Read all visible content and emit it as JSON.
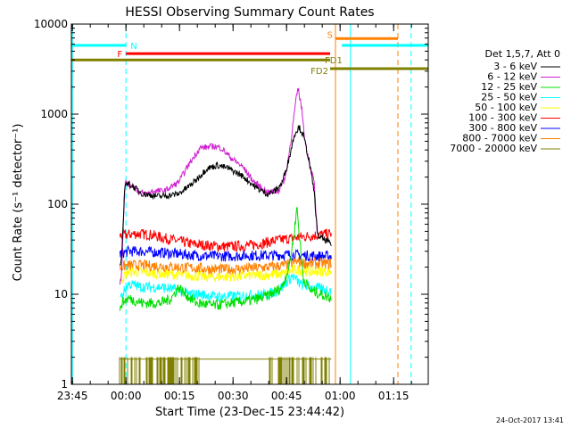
{
  "chart_data": {
    "type": "line",
    "title": "HESSI Observing Summary Count Rates",
    "xlabel": "Start Time (23-Dec-15 23:44:42)",
    "ylabel": "Count Rate (s⁻¹ detector⁻¹)",
    "y_scale": "log",
    "ylim": [
      1,
      10000
    ],
    "xlim_minutes_after_start": [
      0,
      100
    ],
    "x_ticks": [
      {
        "label": "23:45",
        "t": 0.3
      },
      {
        "label": "00:00",
        "t": 15.3
      },
      {
        "label": "00:15",
        "t": 30.3
      },
      {
        "label": "00:30",
        "t": 45.3
      },
      {
        "label": "00:45",
        "t": 60.3
      },
      {
        "label": "01:00",
        "t": 75.3
      },
      {
        "label": "01:15",
        "t": 90.3
      }
    ],
    "y_ticks": [
      {
        "label": "1",
        "v": 1
      },
      {
        "label": "10",
        "v": 10
      },
      {
        "label": "100",
        "v": 100
      },
      {
        "label": "1000",
        "v": 1000
      },
      {
        "label": "10000",
        "v": 10000
      }
    ],
    "legend_title": "Det 1,5,7, Att 0",
    "legend_position": "right",
    "series": [
      {
        "name": "3 - 6 keV",
        "color": "#000000",
        "points": [
          [
            13.6,
            20
          ],
          [
            14,
            22
          ],
          [
            15,
            170
          ],
          [
            17,
            160
          ],
          [
            20,
            130
          ],
          [
            25,
            122
          ],
          [
            30,
            130
          ],
          [
            34,
            170
          ],
          [
            38,
            250
          ],
          [
            41,
            270
          ],
          [
            44,
            250
          ],
          [
            48,
            205
          ],
          [
            52,
            150
          ],
          [
            55,
            130
          ],
          [
            57,
            140
          ],
          [
            59,
            170
          ],
          [
            61,
            320
          ],
          [
            62.5,
            600
          ],
          [
            63.8,
            720
          ],
          [
            65,
            580
          ],
          [
            66.5,
            320
          ],
          [
            68,
            140
          ],
          [
            69,
            45
          ],
          [
            71,
            40
          ],
          [
            72,
            38
          ],
          [
            73,
            35
          ]
        ]
      },
      {
        "name": "6 - 12 keV",
        "color": "#d020d0",
        "points": [
          [
            13.6,
            13
          ],
          [
            14,
            16
          ],
          [
            15,
            170
          ],
          [
            17,
            165
          ],
          [
            19,
            135
          ],
          [
            21,
            130
          ],
          [
            23,
            140
          ],
          [
            26,
            140
          ],
          [
            30,
            175
          ],
          [
            33,
            280
          ],
          [
            36,
            420
          ],
          [
            38,
            430
          ],
          [
            40,
            440
          ],
          [
            42,
            420
          ],
          [
            45,
            320
          ],
          [
            48,
            260
          ],
          [
            51,
            180
          ],
          [
            53,
            155
          ],
          [
            55,
            135
          ],
          [
            58,
            140
          ],
          [
            60,
            200
          ],
          [
            61.5,
            500
          ],
          [
            62.8,
            1300
          ],
          [
            63.5,
            1950
          ],
          [
            64.5,
            1200
          ],
          [
            65.5,
            500
          ],
          [
            67,
            250
          ],
          [
            68,
            180
          ],
          [
            69,
            40
          ]
        ]
      },
      {
        "name": "12 - 25 keV",
        "color": "#00e000",
        "points": [
          [
            13.6,
            6
          ],
          [
            14,
            8
          ],
          [
            16,
            9
          ],
          [
            20,
            8
          ],
          [
            25,
            8
          ],
          [
            28,
            9
          ],
          [
            30,
            12
          ],
          [
            32,
            10
          ],
          [
            35,
            8
          ],
          [
            40,
            7.5
          ],
          [
            45,
            8
          ],
          [
            50,
            8.5
          ],
          [
            53,
            9
          ],
          [
            56,
            10
          ],
          [
            59,
            12
          ],
          [
            61,
            20
          ],
          [
            62.5,
            50
          ],
          [
            63.2,
            95
          ],
          [
            64,
            40
          ],
          [
            65,
            15
          ],
          [
            67,
            11
          ],
          [
            70,
            10
          ],
          [
            73,
            9
          ]
        ]
      },
      {
        "name": "25 - 50 keV",
        "color": "#00ffff",
        "points": [
          [
            13.6,
            9
          ],
          [
            16,
            13
          ],
          [
            20,
            12
          ],
          [
            25,
            12
          ],
          [
            30,
            11
          ],
          [
            33,
            10
          ],
          [
            36,
            10
          ],
          [
            40,
            9.5
          ],
          [
            45,
            9.5
          ],
          [
            50,
            9.8
          ],
          [
            55,
            10
          ],
          [
            58,
            11
          ],
          [
            62,
            16
          ],
          [
            64,
            13
          ],
          [
            67,
            12
          ],
          [
            70,
            11.5
          ],
          [
            73,
            11
          ]
        ]
      },
      {
        "name": "50 - 100 keV",
        "color": "#ffff00",
        "points": [
          [
            13.6,
            14
          ],
          [
            16,
            18
          ],
          [
            20,
            17.5
          ],
          [
            25,
            17
          ],
          [
            30,
            16.5
          ],
          [
            35,
            16
          ],
          [
            40,
            15.5
          ],
          [
            45,
            15.8
          ],
          [
            50,
            16
          ],
          [
            55,
            16.5
          ],
          [
            60,
            17
          ],
          [
            63,
            19
          ],
          [
            66,
            18
          ],
          [
            70,
            18
          ],
          [
            73,
            18
          ]
        ]
      },
      {
        "name": "100 - 300 keV",
        "color": "#ff0000",
        "points": [
          [
            13.6,
            44
          ],
          [
            14,
            45
          ],
          [
            18,
            47
          ],
          [
            22,
            46
          ],
          [
            26,
            42
          ],
          [
            30,
            39
          ],
          [
            34,
            36
          ],
          [
            38,
            35
          ],
          [
            42,
            34
          ],
          [
            46,
            34
          ],
          [
            50,
            35
          ],
          [
            54,
            37
          ],
          [
            58,
            40
          ],
          [
            62,
            42
          ],
          [
            66,
            44
          ],
          [
            70,
            46
          ],
          [
            73,
            47
          ]
        ]
      },
      {
        "name": "300 - 800 keV",
        "color": "#0000ff",
        "points": [
          [
            13.6,
            28
          ],
          [
            16,
            30
          ],
          [
            20,
            30
          ],
          [
            25,
            29
          ],
          [
            30,
            28
          ],
          [
            35,
            27
          ],
          [
            40,
            26.5
          ],
          [
            45,
            26.5
          ],
          [
            50,
            27
          ],
          [
            55,
            27
          ],
          [
            60,
            27.5
          ],
          [
            65,
            27
          ],
          [
            70,
            26.5
          ],
          [
            73,
            26.5
          ]
        ]
      },
      {
        "name": "800 - 7000 keV",
        "color": "#ff8000",
        "points": [
          [
            13.6,
            20
          ],
          [
            16,
            21
          ],
          [
            20,
            21
          ],
          [
            25,
            20.5
          ],
          [
            30,
            20
          ],
          [
            35,
            19.5
          ],
          [
            40,
            19
          ],
          [
            45,
            19
          ],
          [
            50,
            19.5
          ],
          [
            55,
            20
          ],
          [
            60,
            21
          ],
          [
            63,
            23
          ],
          [
            66,
            22
          ],
          [
            70,
            22
          ],
          [
            73,
            22
          ]
        ]
      },
      {
        "name": "7000 - 20000 keV",
        "color": "#808000",
        "points": [
          [
            13.6,
            1.9
          ],
          [
            73,
            1.9
          ]
        ]
      }
    ],
    "annotations": [
      {
        "label": "N",
        "color": "#00ffff",
        "segments": [
          [
            0,
            15.3
          ],
          [
            75.8,
            100
          ]
        ],
        "level": 5800
      },
      {
        "label": "F",
        "color": "#ff0000",
        "segments": [
          [
            15.3,
            72.5
          ]
        ],
        "level": 4700
      },
      {
        "label": "FD1",
        "color": "#808000",
        "segments": [
          [
            0,
            72.5
          ]
        ],
        "level": 4000
      },
      {
        "label": "FD2",
        "color": "#808000",
        "segments": [
          [
            72.5,
            100
          ]
        ],
        "level": 3200
      },
      {
        "label": "S",
        "color": "#ff8000",
        "segments": [
          [
            74,
            91.5
          ]
        ],
        "level": 6900
      }
    ],
    "vertical_lines": [
      {
        "t": 0.3,
        "color": "#00ffff",
        "style": "solid"
      },
      {
        "t": 15.3,
        "color": "#00ffff",
        "style": "dashed"
      },
      {
        "t": 74,
        "color": "#ff8000",
        "style": "solid"
      },
      {
        "t": 78.2,
        "color": "#00ffff",
        "style": "solid"
      },
      {
        "t": 91.5,
        "color": "#ff8000",
        "style": "dashed"
      },
      {
        "t": 95.2,
        "color": "#00ffff",
        "style": "dashed"
      }
    ],
    "spike_band": {
      "color": "#808000",
      "low": 1,
      "high": 2,
      "ranges": [
        [
          13.6,
          36
        ],
        [
          55.5,
          72.5
        ]
      ]
    }
  },
  "footer": {
    "date": "24-Oct-2017 13:41"
  }
}
